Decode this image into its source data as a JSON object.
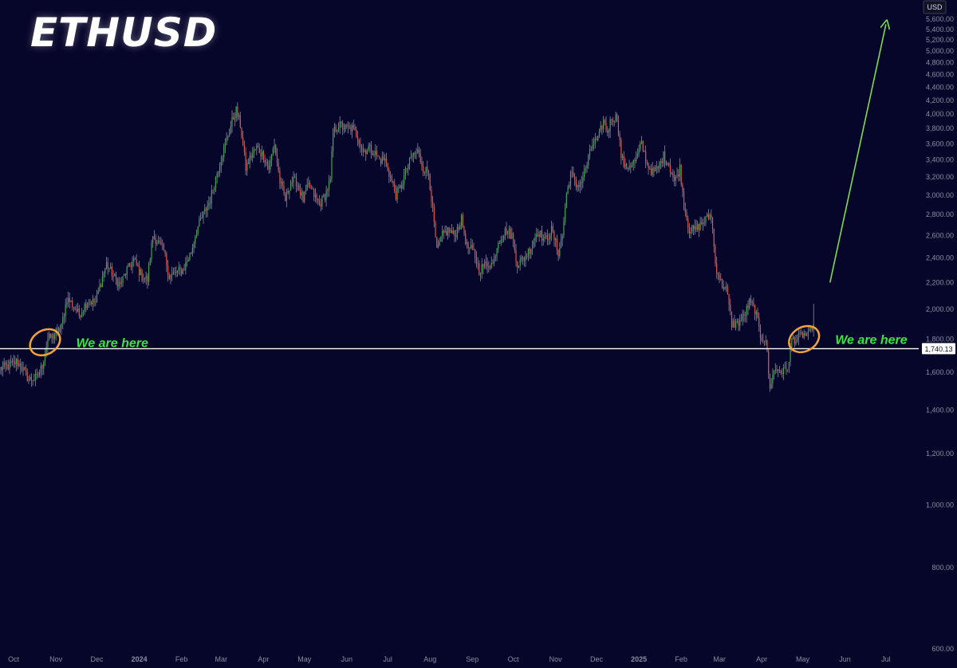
{
  "colors": {
    "background": "#06052a",
    "up": "#3fa64f",
    "down": "#e0534f",
    "wick": "#8a8a9a",
    "hline": "#ffffff",
    "arrow": "#7fdc4f",
    "ellipse": "#f2a33a",
    "annotation": "#39e641",
    "axis_text": "#8a8fa0"
  },
  "chart_data": {
    "type": "candlestick",
    "title": "ETHUSD",
    "currency_label": "USD",
    "y_scale": "log",
    "ylim": [
      600,
      5600
    ],
    "y_ticks": [
      {
        "value": 600,
        "label": "600.00"
      },
      {
        "value": 800,
        "label": "800.00"
      },
      {
        "value": 1000,
        "label": "1,000.00"
      },
      {
        "value": 1200,
        "label": "1,200.00"
      },
      {
        "value": 1400,
        "label": "1,400.00"
      },
      {
        "value": 1600,
        "label": "1,600.00"
      },
      {
        "value": 1800,
        "label": "1,800.00"
      },
      {
        "value": 2000,
        "label": "2,000.00"
      },
      {
        "value": 2200,
        "label": "2,200.00"
      },
      {
        "value": 2400,
        "label": "2,400.00"
      },
      {
        "value": 2600,
        "label": "2,600.00"
      },
      {
        "value": 2800,
        "label": "2,800.00"
      },
      {
        "value": 3000,
        "label": "3,000.00"
      },
      {
        "value": 3200,
        "label": "3,200.00"
      },
      {
        "value": 3400,
        "label": "3,400.00"
      },
      {
        "value": 3600,
        "label": "3,600.00"
      },
      {
        "value": 3800,
        "label": "3,800.00"
      },
      {
        "value": 4000,
        "label": "4,000.00"
      },
      {
        "value": 4200,
        "label": "4,200.00"
      },
      {
        "value": 4400,
        "label": "4,400.00"
      },
      {
        "value": 4600,
        "label": "4,600.00"
      },
      {
        "value": 4800,
        "label": "4,800.00"
      },
      {
        "value": 5000,
        "label": "5,000.00"
      },
      {
        "value": 5200,
        "label": "5,200.00"
      },
      {
        "value": 5400,
        "label": "5,400.00"
      },
      {
        "value": 5600,
        "label": "5,600.00"
      }
    ],
    "x_range": [
      "2023-09-21",
      "2025-07-25"
    ],
    "x_ticks": [
      {
        "date": "2023-10-01",
        "label": "Oct",
        "bold": false
      },
      {
        "date": "2023-11-01",
        "label": "Nov",
        "bold": false
      },
      {
        "date": "2023-12-01",
        "label": "Dec",
        "bold": false
      },
      {
        "date": "2024-01-01",
        "label": "2024",
        "bold": true
      },
      {
        "date": "2024-02-01",
        "label": "Feb",
        "bold": false
      },
      {
        "date": "2024-03-01",
        "label": "Mar",
        "bold": false
      },
      {
        "date": "2024-04-01",
        "label": "Apr",
        "bold": false
      },
      {
        "date": "2024-05-01",
        "label": "May",
        "bold": false
      },
      {
        "date": "2024-06-01",
        "label": "Jun",
        "bold": false
      },
      {
        "date": "2024-07-01",
        "label": "Jul",
        "bold": false
      },
      {
        "date": "2024-08-01",
        "label": "Aug",
        "bold": false
      },
      {
        "date": "2024-09-01",
        "label": "Sep",
        "bold": false
      },
      {
        "date": "2024-10-01",
        "label": "Oct",
        "bold": false
      },
      {
        "date": "2024-11-01",
        "label": "Nov",
        "bold": false
      },
      {
        "date": "2024-12-01",
        "label": "Dec",
        "bold": false
      },
      {
        "date": "2025-01-01",
        "label": "2025",
        "bold": true
      },
      {
        "date": "2025-02-01",
        "label": "Feb",
        "bold": false
      },
      {
        "date": "2025-03-01",
        "label": "Mar",
        "bold": false
      },
      {
        "date": "2025-04-01",
        "label": "Apr",
        "bold": false
      },
      {
        "date": "2025-05-01",
        "label": "May",
        "bold": false
      },
      {
        "date": "2025-06-01",
        "label": "Jun",
        "bold": false
      },
      {
        "date": "2025-07-01",
        "label": "Jul",
        "bold": false
      }
    ],
    "price_path": [
      [
        "2023-09-21",
        1620
      ],
      [
        "2023-09-28",
        1640
      ],
      [
        "2023-10-03",
        1660
      ],
      [
        "2023-10-06",
        1640
      ],
      [
        "2023-10-12",
        1560
      ],
      [
        "2023-10-18",
        1570
      ],
      [
        "2023-10-22",
        1640
      ],
      [
        "2023-10-26",
        1800
      ],
      [
        "2023-10-30",
        1820
      ],
      [
        "2023-11-05",
        1880
      ],
      [
        "2023-11-09",
        2080
      ],
      [
        "2023-11-12",
        2050
      ],
      [
        "2023-11-18",
        1960
      ],
      [
        "2023-11-24",
        2060
      ],
      [
        "2023-11-30",
        2050
      ],
      [
        "2023-12-05",
        2240
      ],
      [
        "2023-12-08",
        2350
      ],
      [
        "2023-12-13",
        2250
      ],
      [
        "2023-12-18",
        2180
      ],
      [
        "2023-12-23",
        2300
      ],
      [
        "2023-12-28",
        2380
      ],
      [
        "2024-01-03",
        2250
      ],
      [
        "2024-01-07",
        2220
      ],
      [
        "2024-01-11",
        2600
      ],
      [
        "2024-01-14",
        2550
      ],
      [
        "2024-01-19",
        2460
      ],
      [
        "2024-01-23",
        2250
      ],
      [
        "2024-01-28",
        2280
      ],
      [
        "2024-02-02",
        2300
      ],
      [
        "2024-02-08",
        2450
      ],
      [
        "2024-02-12",
        2650
      ],
      [
        "2024-02-17",
        2800
      ],
      [
        "2024-02-22",
        2950
      ],
      [
        "2024-02-27",
        3250
      ],
      [
        "2024-03-01",
        3420
      ],
      [
        "2024-03-05",
        3650
      ],
      [
        "2024-03-09",
        3900
      ],
      [
        "2024-03-12",
        4050
      ],
      [
        "2024-03-15",
        3850
      ],
      [
        "2024-03-19",
        3300
      ],
      [
        "2024-03-23",
        3450
      ],
      [
        "2024-03-27",
        3550
      ],
      [
        "2024-04-01",
        3450
      ],
      [
        "2024-04-05",
        3300
      ],
      [
        "2024-04-09",
        3600
      ],
      [
        "2024-04-13",
        3150
      ],
      [
        "2024-04-17",
        2950
      ],
      [
        "2024-04-21",
        3150
      ],
      [
        "2024-04-25",
        3150
      ],
      [
        "2024-04-30",
        2950
      ],
      [
        "2024-05-04",
        3100
      ],
      [
        "2024-05-08",
        3000
      ],
      [
        "2024-05-12",
        2900
      ],
      [
        "2024-05-16",
        3000
      ],
      [
        "2024-05-20",
        3150
      ],
      [
        "2024-05-22",
        3750
      ],
      [
        "2024-05-26",
        3850
      ],
      [
        "2024-05-31",
        3800
      ],
      [
        "2024-06-05",
        3800
      ],
      [
        "2024-06-09",
        3700
      ],
      [
        "2024-06-13",
        3500
      ],
      [
        "2024-06-17",
        3550
      ],
      [
        "2024-06-21",
        3500
      ],
      [
        "2024-06-25",
        3400
      ],
      [
        "2024-06-29",
        3400
      ],
      [
        "2024-07-03",
        3200
      ],
      [
        "2024-07-07",
        3000
      ],
      [
        "2024-07-11",
        3100
      ],
      [
        "2024-07-15",
        3300
      ],
      [
        "2024-07-19",
        3450
      ],
      [
        "2024-07-23",
        3500
      ],
      [
        "2024-07-27",
        3300
      ],
      [
        "2024-07-31",
        3250
      ],
      [
        "2024-08-04",
        2700
      ],
      [
        "2024-08-06",
        2450
      ],
      [
        "2024-08-10",
        2600
      ],
      [
        "2024-08-14",
        2650
      ],
      [
        "2024-08-19",
        2600
      ],
      [
        "2024-08-24",
        2750
      ],
      [
        "2024-08-28",
        2500
      ],
      [
        "2024-09-02",
        2450
      ],
      [
        "2024-09-06",
        2300
      ],
      [
        "2024-09-11",
        2350
      ],
      [
        "2024-09-16",
        2350
      ],
      [
        "2024-09-20",
        2550
      ],
      [
        "2024-09-26",
        2650
      ],
      [
        "2024-09-30",
        2600
      ],
      [
        "2024-10-04",
        2350
      ],
      [
        "2024-10-09",
        2400
      ],
      [
        "2024-10-14",
        2500
      ],
      [
        "2024-10-19",
        2650
      ],
      [
        "2024-10-24",
        2550
      ],
      [
        "2024-10-29",
        2650
      ],
      [
        "2024-11-03",
        2450
      ],
      [
        "2024-11-06",
        2600
      ],
      [
        "2024-11-09",
        3000
      ],
      [
        "2024-11-12",
        3250
      ],
      [
        "2024-11-16",
        3100
      ],
      [
        "2024-11-20",
        3150
      ],
      [
        "2024-11-24",
        3350
      ],
      [
        "2024-11-28",
        3600
      ],
      [
        "2024-12-02",
        3650
      ],
      [
        "2024-12-06",
        3900
      ],
      [
        "2024-12-09",
        3750
      ],
      [
        "2024-12-12",
        3950
      ],
      [
        "2024-12-16",
        3950
      ],
      [
        "2024-12-19",
        3450
      ],
      [
        "2024-12-22",
        3300
      ],
      [
        "2024-12-26",
        3350
      ],
      [
        "2024-12-30",
        3400
      ],
      [
        "2025-01-03",
        3600
      ],
      [
        "2025-01-07",
        3350
      ],
      [
        "2025-01-11",
        3250
      ],
      [
        "2025-01-15",
        3300
      ],
      [
        "2025-01-19",
        3450
      ],
      [
        "2025-01-23",
        3350
      ],
      [
        "2025-01-27",
        3150
      ],
      [
        "2025-01-31",
        3300
      ],
      [
        "2025-02-03",
        2900
      ],
      [
        "2025-02-07",
        2650
      ],
      [
        "2025-02-11",
        2650
      ],
      [
        "2025-02-15",
        2700
      ],
      [
        "2025-02-19",
        2750
      ],
      [
        "2025-02-23",
        2800
      ],
      [
        "2025-02-26",
        2350
      ],
      [
        "2025-03-02",
        2200
      ],
      [
        "2025-03-06",
        2150
      ],
      [
        "2025-03-10",
        1900
      ],
      [
        "2025-03-14",
        1900
      ],
      [
        "2025-03-19",
        1950
      ],
      [
        "2025-03-23",
        2050
      ],
      [
        "2025-03-27",
        2000
      ],
      [
        "2025-03-31",
        1820
      ],
      [
        "2025-04-04",
        1800
      ],
      [
        "2025-04-07",
        1500
      ],
      [
        "2025-04-09",
        1600
      ],
      [
        "2025-04-13",
        1620
      ],
      [
        "2025-04-17",
        1600
      ],
      [
        "2025-04-21",
        1650
      ],
      [
        "2025-04-23",
        1800
      ],
      [
        "2025-04-27",
        1800
      ],
      [
        "2025-05-01",
        1830
      ],
      [
        "2025-05-05",
        1820
      ],
      [
        "2025-05-08",
        1860
      ]
    ],
    "last_price_marker": {
      "date": "2025-05-09",
      "value": 2040
    },
    "horizontal_line": {
      "value": 1740.13,
      "label": "1,740.13"
    },
    "projection_arrow": {
      "from": [
        "2025-05-21",
        2200
      ],
      "to": [
        "2025-07-01",
        5500
      ]
    },
    "highlights": [
      {
        "center": [
          "2023-10-24",
          1780
        ],
        "text": "We are here"
      },
      {
        "center": [
          "2025-05-02",
          1800
        ],
        "text": "We are here"
      }
    ]
  }
}
